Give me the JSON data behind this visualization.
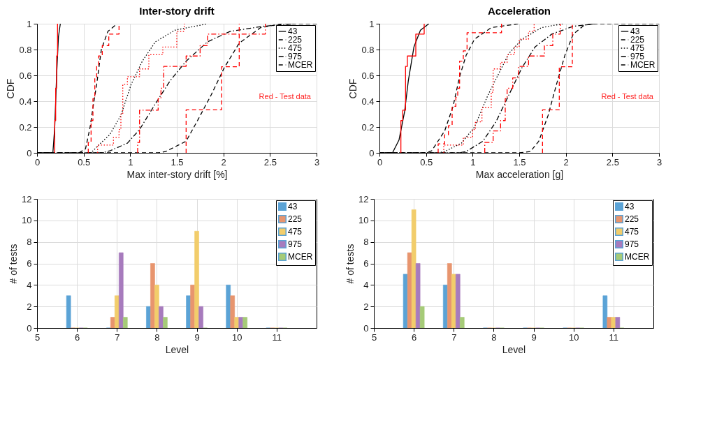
{
  "chart_data": [
    {
      "type": "line",
      "title": "Inter-story drift",
      "xlabel": "Max inter-story drift [%]",
      "ylabel": "CDF",
      "xlim": [
        0,
        3
      ],
      "xticks": [
        0,
        0.5,
        1,
        1.5,
        2,
        2.5,
        3
      ],
      "ylim": [
        0,
        1
      ],
      "yticks": [
        0,
        0.2,
        0.4,
        0.6,
        0.8,
        1
      ],
      "grid": true,
      "legend": "top right",
      "annotations": [
        "Red - Test data"
      ],
      "series": [
        {
          "name": "43",
          "color": "#000000",
          "line_style": "solid",
          "x": [
            0,
            0.17,
            0.19,
            0.21,
            0.23,
            0.25
          ],
          "values": [
            0,
            0,
            0.2,
            0.6,
            0.9,
            1
          ]
        },
        {
          "name": "225",
          "color": "#000000",
          "line_style": "dashed",
          "x": [
            0,
            0.45,
            0.52,
            0.57,
            0.6,
            0.64,
            0.69,
            0.76,
            0.86
          ],
          "values": [
            0,
            0,
            0.03,
            0.2,
            0.35,
            0.53,
            0.8,
            0.94,
            1
          ]
        },
        {
          "name": "475",
          "color": "#000000",
          "line_style": "dotted",
          "x": [
            0,
            0.58,
            0.66,
            0.78,
            0.9,
            1.01,
            1.13,
            1.27,
            1.48,
            1.83
          ],
          "values": [
            0,
            0,
            0.06,
            0.14,
            0.29,
            0.53,
            0.71,
            0.86,
            0.95,
            1
          ]
        },
        {
          "name": "975",
          "color": "#000000",
          "line_style": "dashdot",
          "x": [
            0,
            0.7,
            0.78,
            0.97,
            1.1,
            1.27,
            1.43,
            1.6,
            1.83,
            2.07,
            2.42,
            2.77
          ],
          "values": [
            0,
            0,
            0.015,
            0.075,
            0.18,
            0.38,
            0.56,
            0.71,
            0.86,
            0.94,
            0.98,
            1
          ]
        },
        {
          "name": "MCER",
          "color": "#000000",
          "line_style": "dashed",
          "x": [
            0,
            1.3,
            1.38,
            1.6,
            1.73,
            1.87,
            2.01,
            2.17,
            2.4,
            2.63,
            3
          ],
          "values": [
            0,
            0,
            0.01,
            0.09,
            0.26,
            0.45,
            0.66,
            0.85,
            0.97,
            1,
            1
          ]
        },
        {
          "type": "step",
          "color": "#ff0000",
          "line_style": "solid",
          "x": [
            0.19,
            0.19,
            0.2,
            0.21,
            0.22
          ],
          "values": [
            0,
            0.25,
            0.5,
            0.75,
            1
          ]
        },
        {
          "type": "step",
          "color": "#ff0000",
          "line_style": "dashed",
          "x": [
            0.55,
            0.55,
            0.58,
            0.6,
            0.62,
            0.64,
            0.66,
            0.7,
            0.77,
            0.88
          ],
          "values": [
            0,
            0.08,
            0.25,
            0.42,
            0.58,
            0.67,
            0.75,
            0.83,
            0.92,
            1
          ]
        },
        {
          "type": "step",
          "color": "#ff0000",
          "line_style": "dotted",
          "x": [
            0.65,
            0.65,
            0.82,
            0.88,
            0.9,
            0.92,
            0.97,
            1.1,
            1.2,
            1.35,
            1.5,
            1.58
          ],
          "values": [
            0,
            0.06,
            0.12,
            0.18,
            0.3,
            0.53,
            0.59,
            0.65,
            0.76,
            0.82,
            0.94,
            1
          ]
        },
        {
          "type": "step",
          "color": "#ff0000",
          "line_style": "dashdot",
          "x": [
            1.08,
            1.08,
            1.1,
            1.3,
            1.33,
            1.36,
            1.6,
            1.75,
            1.83,
            2.45
          ],
          "values": [
            0,
            0.08,
            0.33,
            0.42,
            0.5,
            0.67,
            0.75,
            0.83,
            0.92,
            1
          ]
        },
        {
          "type": "step",
          "color": "#ff0000",
          "line_style": "dashed",
          "x": [
            1.6,
            1.6,
            1.98,
            2.17
          ],
          "values": [
            0,
            0.333,
            0.667,
            1
          ]
        }
      ]
    },
    {
      "type": "line",
      "title": "Acceleration",
      "xlabel": "Max acceleration [g]",
      "ylabel": "CDF",
      "xlim": [
        0,
        3
      ],
      "xticks": [
        0,
        0.5,
        1,
        1.5,
        2,
        2.5,
        3
      ],
      "ylim": [
        0,
        1
      ],
      "yticks": [
        0,
        0.2,
        0.4,
        0.6,
        0.8,
        1
      ],
      "grid": true,
      "legend": "top right",
      "annotations": [
        "Red - Test data"
      ],
      "series": [
        {
          "name": "43",
          "color": "#000000",
          "line_style": "solid",
          "x": [
            0,
            0.14,
            0.21,
            0.27,
            0.31,
            0.37,
            0.44,
            0.53
          ],
          "values": [
            0,
            0,
            0.1,
            0.32,
            0.56,
            0.82,
            0.95,
            1
          ]
        },
        {
          "name": "225",
          "color": "#000000",
          "line_style": "dashed",
          "x": [
            0,
            0.5,
            0.56,
            0.7,
            0.79,
            0.86,
            0.93,
            1.02,
            1.2,
            1.5
          ],
          "values": [
            0,
            0,
            0.015,
            0.17,
            0.36,
            0.59,
            0.755,
            0.88,
            0.97,
            1
          ]
        },
        {
          "name": "475",
          "color": "#000000",
          "line_style": "dotted",
          "x": [
            0,
            0.62,
            0.7,
            0.88,
            1.02,
            1.16,
            1.27,
            1.39,
            1.53,
            1.74,
            1.97
          ],
          "values": [
            0,
            0,
            0.01,
            0.075,
            0.2,
            0.44,
            0.6,
            0.77,
            0.88,
            0.97,
            1
          ]
        },
        {
          "name": "975",
          "color": "#000000",
          "line_style": "dashdot",
          "x": [
            0,
            0.85,
            0.93,
            1.11,
            1.25,
            1.39,
            1.53,
            1.67,
            1.85,
            2.08,
            2.32
          ],
          "values": [
            0,
            0,
            0.01,
            0.09,
            0.24,
            0.45,
            0.66,
            0.82,
            0.92,
            0.98,
            1
          ]
        },
        {
          "name": "MCER",
          "color": "#000000",
          "line_style": "dashed",
          "x": [
            0,
            1.5,
            1.62,
            1.71,
            1.81,
            1.9,
            1.99,
            2.08,
            2.2,
            2.32,
            3
          ],
          "values": [
            0,
            0,
            0.01,
            0.09,
            0.29,
            0.53,
            0.755,
            0.92,
            0.99,
            1,
            1
          ]
        },
        {
          "type": "step",
          "color": "#ff0000",
          "line_style": "solid",
          "x": [
            0.23,
            0.23,
            0.25,
            0.28,
            0.3,
            0.39,
            0.48
          ],
          "values": [
            0,
            0.25,
            0.33,
            0.67,
            0.75,
            0.92,
            1
          ]
        },
        {
          "type": "step",
          "color": "#ff0000",
          "line_style": "dashed",
          "x": [
            0.63,
            0.63,
            0.7,
            0.74,
            0.78,
            0.82,
            0.84,
            0.86,
            0.9,
            0.94,
            1.31
          ],
          "values": [
            0,
            0.07,
            0.14,
            0.21,
            0.36,
            0.43,
            0.5,
            0.71,
            0.79,
            0.93,
            1
          ]
        },
        {
          "type": "step",
          "color": "#ff0000",
          "line_style": "dotted",
          "x": [
            0.69,
            0.69,
            0.9,
            1.0,
            1.03,
            1.1,
            1.2,
            1.22,
            1.3,
            1.37,
            1.45,
            1.5,
            1.6,
            1.66
          ],
          "values": [
            0,
            0.06,
            0.12,
            0.18,
            0.24,
            0.35,
            0.47,
            0.65,
            0.7,
            0.76,
            0.82,
            0.88,
            0.94,
            1
          ]
        },
        {
          "type": "step",
          "color": "#ff0000",
          "line_style": "dashdot",
          "x": [
            1.13,
            1.13,
            1.22,
            1.3,
            1.35,
            1.37,
            1.43,
            1.49,
            1.6,
            1.77,
            1.86,
            1.94
          ],
          "values": [
            0,
            0.08,
            0.17,
            0.25,
            0.42,
            0.5,
            0.58,
            0.67,
            0.75,
            0.83,
            0.92,
            1
          ]
        },
        {
          "type": "step",
          "color": "#ff0000",
          "line_style": "dashed",
          "x": [
            1.75,
            1.75,
            1.93,
            2.07
          ],
          "values": [
            0,
            0.333,
            0.667,
            1
          ]
        }
      ]
    },
    {
      "type": "bar",
      "xlabel": "Level",
      "ylabel": "# of tests",
      "x": [
        6,
        7,
        8,
        9,
        10,
        11
      ],
      "xlim": [
        5,
        12
      ],
      "xticks": [
        5,
        6,
        7,
        8,
        9,
        10,
        11
      ],
      "ylim": [
        0,
        12
      ],
      "yticks": [
        0,
        2,
        4,
        6,
        8,
        10,
        12
      ],
      "grid": true,
      "legend": "top right",
      "series": [
        {
          "name": "43",
          "color": "#5ba3d6",
          "values": [
            3,
            0,
            2,
            3,
            4,
            0
          ]
        },
        {
          "name": "225",
          "color": "#e8956e",
          "values": [
            0,
            1,
            6,
            4,
            3,
            0
          ]
        },
        {
          "name": "475",
          "color": "#f2cd6b",
          "values": [
            0,
            3,
            4,
            9,
            1,
            0
          ]
        },
        {
          "name": "975",
          "color": "#a77bbd",
          "values": [
            0,
            7,
            2,
            2,
            1,
            0
          ]
        },
        {
          "name": "MCER",
          "color": "#a6cb78",
          "values": [
            0,
            1,
            1,
            0,
            1,
            0
          ]
        }
      ]
    },
    {
      "type": "bar",
      "xlabel": "Level",
      "ylabel": "# of tests",
      "x": [
        6,
        7,
        8,
        9,
        10,
        11
      ],
      "xlim": [
        5,
        12
      ],
      "xticks": [
        5,
        6,
        7,
        8,
        9,
        10,
        11
      ],
      "ylim": [
        0,
        12
      ],
      "yticks": [
        0,
        2,
        4,
        6,
        8,
        10,
        12
      ],
      "grid": true,
      "legend": "top right",
      "series": [
        {
          "name": "43",
          "color": "#5ba3d6",
          "values": [
            5,
            4,
            0,
            0,
            0,
            3
          ]
        },
        {
          "name": "225",
          "color": "#e8956e",
          "values": [
            7,
            6,
            0,
            0,
            0,
            1
          ]
        },
        {
          "name": "475",
          "color": "#f2cd6b",
          "values": [
            11,
            5,
            0,
            0,
            0,
            1
          ]
        },
        {
          "name": "975",
          "color": "#a77bbd",
          "values": [
            6,
            5,
            0,
            0,
            0,
            1
          ]
        },
        {
          "name": "MCER",
          "color": "#a6cb78",
          "values": [
            2,
            1,
            0,
            0,
            0,
            0
          ]
        }
      ]
    }
  ]
}
